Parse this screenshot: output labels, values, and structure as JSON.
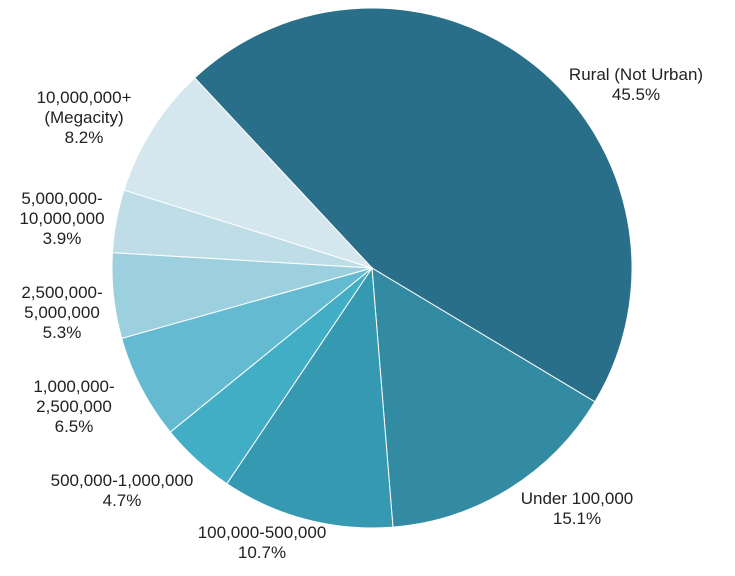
{
  "chart_data": {
    "type": "pie",
    "slices": [
      {
        "name": "Rural (Not Urban)",
        "value": 45.5,
        "value_label": "45.5%",
        "label_lines": [
          "Rural (Not Urban)"
        ],
        "color": "#2a6f89"
      },
      {
        "name": "Under 100,000",
        "value": 15.1,
        "value_label": "15.1%",
        "label_lines": [
          "Under 100,000"
        ],
        "color": "#328aa3"
      },
      {
        "name": "100,000-500,000",
        "value": 10.7,
        "value_label": "10.7%",
        "label_lines": [
          "100,000-500,000"
        ],
        "color": "#3599b1"
      },
      {
        "name": "500,000-1,000,000",
        "value": 4.7,
        "value_label": "4.7%",
        "label_lines": [
          "500,000-1,000,000"
        ],
        "color": "#41aec6"
      },
      {
        "name": "1,000,000-2,500,000",
        "value": 6.5,
        "value_label": "6.5%",
        "label_lines": [
          "1,000,000-",
          "2,500,000"
        ],
        "color": "#64bbd1"
      },
      {
        "name": "2,500,000-5,000,000",
        "value": 5.3,
        "value_label": "5.3%",
        "label_lines": [
          "2,500,000-",
          "5,000,000"
        ],
        "color": "#9dd0df"
      },
      {
        "name": "5,000,000-10,000,000",
        "value": 3.9,
        "value_label": "3.9%",
        "label_lines": [
          "5,000,000-",
          "10,000,000"
        ],
        "color": "#bfdde7"
      },
      {
        "name": "10,000,000+ (Megacity)",
        "value": 8.2,
        "value_label": "8.2%",
        "label_lines": [
          "10,000,000+",
          "(Megacity)"
        ],
        "color": "#d5e7ee"
      }
    ]
  }
}
